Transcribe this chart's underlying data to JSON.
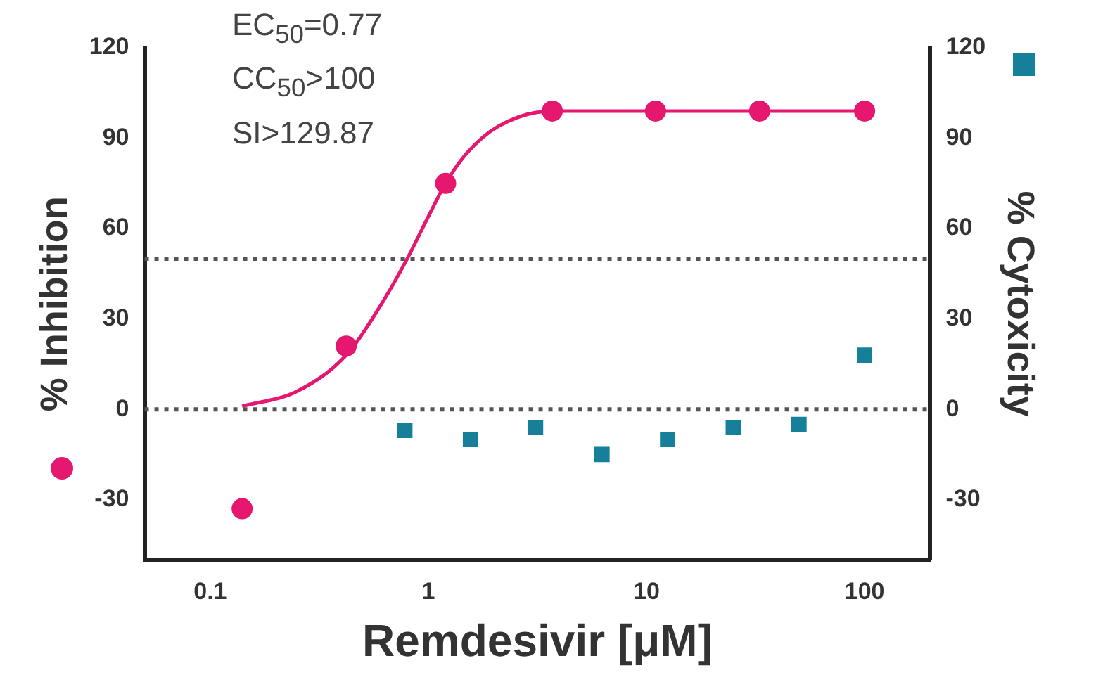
{
  "chart_data": {
    "type": "scatter",
    "xlabel": "Remdesivir [μM]",
    "ylabel": "% Inhibition",
    "y2label": "% Cytoxicity",
    "log": "x",
    "grid": false,
    "legend": false,
    "xlim": [
      0.05,
      200
    ],
    "xticks": [
      0.1,
      1,
      10,
      100
    ],
    "ylim": [
      -50,
      120
    ],
    "yticks": [
      -30,
      0,
      30,
      60,
      90,
      120
    ],
    "y2lim": [
      -50,
      120
    ],
    "y2ticks": [
      -30,
      0,
      30,
      60,
      90,
      120
    ],
    "annotations": [
      "EC$_{50}$=0.77",
      "CC$_{50}$>100",
      "SI>129.87"
    ],
    "ref_lines": [
      {
        "axis": "y",
        "value": 50,
        "color": "#555555",
        "line_style": "dotted"
      },
      {
        "axis": "y",
        "value": 0,
        "color": "#555555",
        "line_style": "dotted"
      }
    ],
    "series": [
      {
        "type": "line",
        "color": "#e6176f",
        "marker": "none",
        "line_style": "solid",
        "x": [
          0.14,
          0.25,
          0.42,
          0.61,
          0.8,
          1.0,
          1.2,
          1.5,
          2.1,
          3.7,
          11,
          33,
          100
        ],
        "values": [
          1,
          6,
          18,
          35,
          50,
          64,
          75,
          85,
          94,
          99,
          99,
          99,
          99
        ]
      },
      {
        "color": "#e6176f",
        "marker": "circle",
        "x": [
          0.14,
          0.42,
          1.2,
          3.7,
          11,
          33,
          100
        ],
        "values": [
          -33,
          21,
          75,
          99,
          99,
          99,
          99
        ]
      },
      {
        "color": "#167f99",
        "marker": "square",
        "axis": "y2",
        "x": [
          0.78,
          1.56,
          3.1,
          6.25,
          12.5,
          25,
          50,
          100
        ],
        "values": [
          -7,
          -10,
          -6,
          -15,
          -10,
          -6,
          -5,
          18
        ]
      }
    ]
  }
}
